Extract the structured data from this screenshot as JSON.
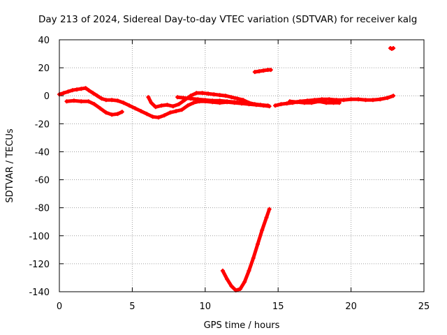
{
  "chart_data": {
    "type": "scatter",
    "title": "Day 213 of 2024, Sidereal Day-to-day VTEC variation (SDTVAR) for receiver kalg",
    "xlabel": "GPS time / hours",
    "ylabel": "SDTVAR / TECUs",
    "xlim": [
      0,
      25
    ],
    "ylim": [
      -140,
      40
    ],
    "x_ticks": [
      0,
      5,
      10,
      15,
      20,
      25
    ],
    "y_ticks": [
      -140,
      -120,
      -100,
      -80,
      -60,
      -40,
      -20,
      0,
      20,
      40
    ],
    "grid": true,
    "marker": "plus",
    "color": "#ff0000",
    "series": [
      {
        "name": "track-1",
        "points": [
          [
            0.0,
            1
          ],
          [
            0.3,
            2
          ],
          [
            0.6,
            3
          ],
          [
            0.9,
            4
          ],
          [
            1.2,
            4.5
          ],
          [
            1.5,
            5
          ],
          [
            1.8,
            5.5
          ],
          [
            2.0,
            4
          ],
          [
            2.3,
            2
          ],
          [
            2.6,
            0
          ],
          [
            2.9,
            -2
          ],
          [
            3.2,
            -3
          ],
          [
            3.6,
            -3
          ],
          [
            4.0,
            -3.5
          ],
          [
            4.4,
            -5
          ],
          [
            4.8,
            -7
          ],
          [
            5.2,
            -9
          ],
          [
            5.6,
            -11
          ],
          [
            6.0,
            -13
          ],
          [
            6.4,
            -15
          ],
          [
            6.8,
            -15.5
          ],
          [
            7.2,
            -14
          ],
          [
            7.6,
            -12
          ],
          [
            8.0,
            -11
          ],
          [
            8.4,
            -10
          ],
          [
            8.8,
            -7
          ],
          [
            9.2,
            -5
          ],
          [
            9.6,
            -4
          ],
          [
            10.0,
            -4
          ],
          [
            10.5,
            -4.5
          ],
          [
            11.0,
            -5
          ],
          [
            11.5,
            -4.5
          ],
          [
            12.0,
            -5
          ],
          [
            12.5,
            -5.5
          ],
          [
            13.0,
            -6
          ],
          [
            13.5,
            -6.5
          ],
          [
            14.0,
            -7
          ],
          [
            14.4,
            -7.5
          ]
        ]
      },
      {
        "name": "track-2",
        "points": [
          [
            0.5,
            -4
          ],
          [
            1.0,
            -3.5
          ],
          [
            1.5,
            -4
          ],
          [
            2.0,
            -4
          ],
          [
            2.4,
            -6
          ],
          [
            2.8,
            -9
          ],
          [
            3.2,
            -12
          ],
          [
            3.6,
            -13.5
          ],
          [
            4.0,
            -13
          ],
          [
            4.3,
            -11.5
          ]
        ]
      },
      {
        "name": "track-3",
        "points": [
          [
            6.1,
            -1
          ],
          [
            6.3,
            -5
          ],
          [
            6.6,
            -8
          ],
          [
            7.0,
            -7
          ],
          [
            7.4,
            -6.5
          ],
          [
            7.8,
            -7.5
          ],
          [
            8.2,
            -6
          ],
          [
            8.6,
            -3
          ],
          [
            9.0,
            0
          ],
          [
            9.4,
            2
          ],
          [
            9.8,
            2
          ],
          [
            10.2,
            1.5
          ],
          [
            10.6,
            1
          ],
          [
            11.0,
            0.5
          ],
          [
            11.4,
            0
          ],
          [
            11.8,
            -1
          ],
          [
            12.2,
            -2
          ],
          [
            12.6,
            -3
          ],
          [
            13.0,
            -5
          ],
          [
            13.4,
            -6
          ],
          [
            13.8,
            -6.5
          ],
          [
            14.3,
            -7
          ]
        ]
      },
      {
        "name": "track-4",
        "points": [
          [
            8.1,
            -1
          ],
          [
            8.5,
            -1.5
          ],
          [
            9.0,
            -2
          ],
          [
            9.5,
            -2.5
          ],
          [
            10.0,
            -3
          ],
          [
            10.5,
            -3.5
          ],
          [
            11.0,
            -3.5
          ],
          [
            11.5,
            -4
          ],
          [
            12.0,
            -4.5
          ],
          [
            12.5,
            -5
          ]
        ]
      },
      {
        "name": "track-5",
        "points": [
          [
            11.2,
            -125
          ],
          [
            11.5,
            -131
          ],
          [
            11.8,
            -136
          ],
          [
            12.1,
            -139
          ],
          [
            12.4,
            -138
          ],
          [
            12.7,
            -133
          ],
          [
            13.0,
            -125
          ],
          [
            13.3,
            -116
          ],
          [
            13.6,
            -106
          ],
          [
            13.9,
            -96
          ],
          [
            14.2,
            -87
          ],
          [
            14.4,
            -81
          ]
        ]
      },
      {
        "name": "track-6",
        "points": [
          [
            13.4,
            17
          ],
          [
            13.7,
            17.5
          ],
          [
            14.0,
            18
          ],
          [
            14.3,
            18.5
          ],
          [
            14.5,
            18.5
          ]
        ]
      },
      {
        "name": "track-7",
        "points": [
          [
            14.8,
            -7
          ],
          [
            15.2,
            -6
          ],
          [
            15.6,
            -5.5
          ],
          [
            16.0,
            -5
          ],
          [
            16.5,
            -4
          ],
          [
            17.0,
            -3.5
          ],
          [
            17.5,
            -3
          ],
          [
            18.0,
            -2.5
          ],
          [
            18.5,
            -2.5
          ],
          [
            19.0,
            -3
          ],
          [
            19.5,
            -3
          ],
          [
            20.0,
            -2.5
          ],
          [
            20.5,
            -2.5
          ],
          [
            21.0,
            -3
          ],
          [
            21.5,
            -3
          ],
          [
            22.0,
            -2.5
          ],
          [
            22.5,
            -1.5
          ],
          [
            22.9,
            0
          ]
        ]
      },
      {
        "name": "track-8",
        "points": [
          [
            15.8,
            -4
          ],
          [
            16.3,
            -4.5
          ],
          [
            16.8,
            -5
          ],
          [
            17.3,
            -5
          ],
          [
            17.8,
            -4
          ],
          [
            18.3,
            -5
          ],
          [
            18.8,
            -5
          ],
          [
            19.2,
            -5
          ]
        ]
      },
      {
        "name": "track-9",
        "points": [
          [
            22.7,
            34
          ],
          [
            22.8,
            33.5
          ],
          [
            22.9,
            34
          ]
        ]
      }
    ]
  }
}
